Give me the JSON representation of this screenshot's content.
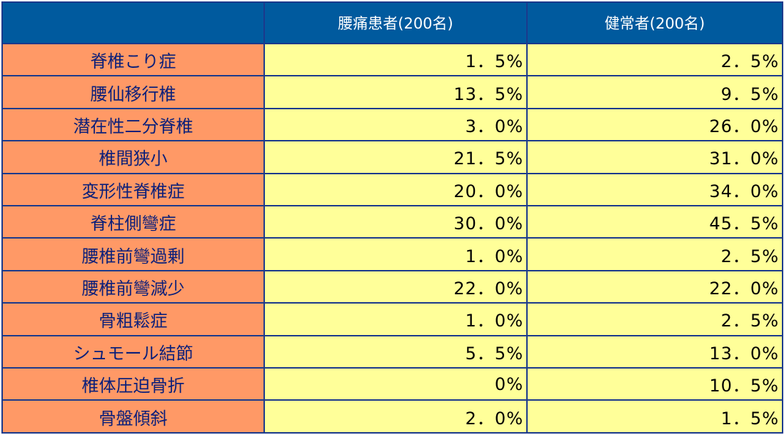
{
  "header": {
    "corner": "",
    "col_patients": "腰痛患者(200名)",
    "col_healthy": "健常者(200名)"
  },
  "rows": [
    {
      "label": "脊椎こり症",
      "patients": "1．5%",
      "healthy": "2．5%"
    },
    {
      "label": "腰仙移行椎",
      "patients": "13．5%",
      "healthy": "9．5%"
    },
    {
      "label": "潜在性二分脊椎",
      "patients": "3．0%",
      "healthy": "26．0%"
    },
    {
      "label": "椎間狭小",
      "patients": "21．5%",
      "healthy": "31．0%"
    },
    {
      "label": "変形性脊椎症",
      "patients": "20．0%",
      "healthy": "34．0%"
    },
    {
      "label": "脊柱側彎症",
      "patients": "30．0%",
      "healthy": "45．5%"
    },
    {
      "label": "腰椎前彎過剰",
      "patients": "1．0%",
      "healthy": "2．5%"
    },
    {
      "label": "腰椎前彎減少",
      "patients": "22．0%",
      "healthy": "22．0%"
    },
    {
      "label": "骨粗鬆症",
      "patients": "1．0%",
      "healthy": "2．5%"
    },
    {
      "label": "シュモール結節",
      "patients": "5．5%",
      "healthy": "13．0%"
    },
    {
      "label": "椎体圧迫骨折",
      "patients": "0%",
      "healthy": "10．5%"
    },
    {
      "label": "骨盤傾斜",
      "patients": "2．0%",
      "healthy": "1．5%"
    }
  ],
  "colors": {
    "header_bg": "#005a9e",
    "label_bg": "#ff9966",
    "value_bg": "#ffff99",
    "border": "#1b3a8c",
    "label_text": "#0a1f7a"
  }
}
